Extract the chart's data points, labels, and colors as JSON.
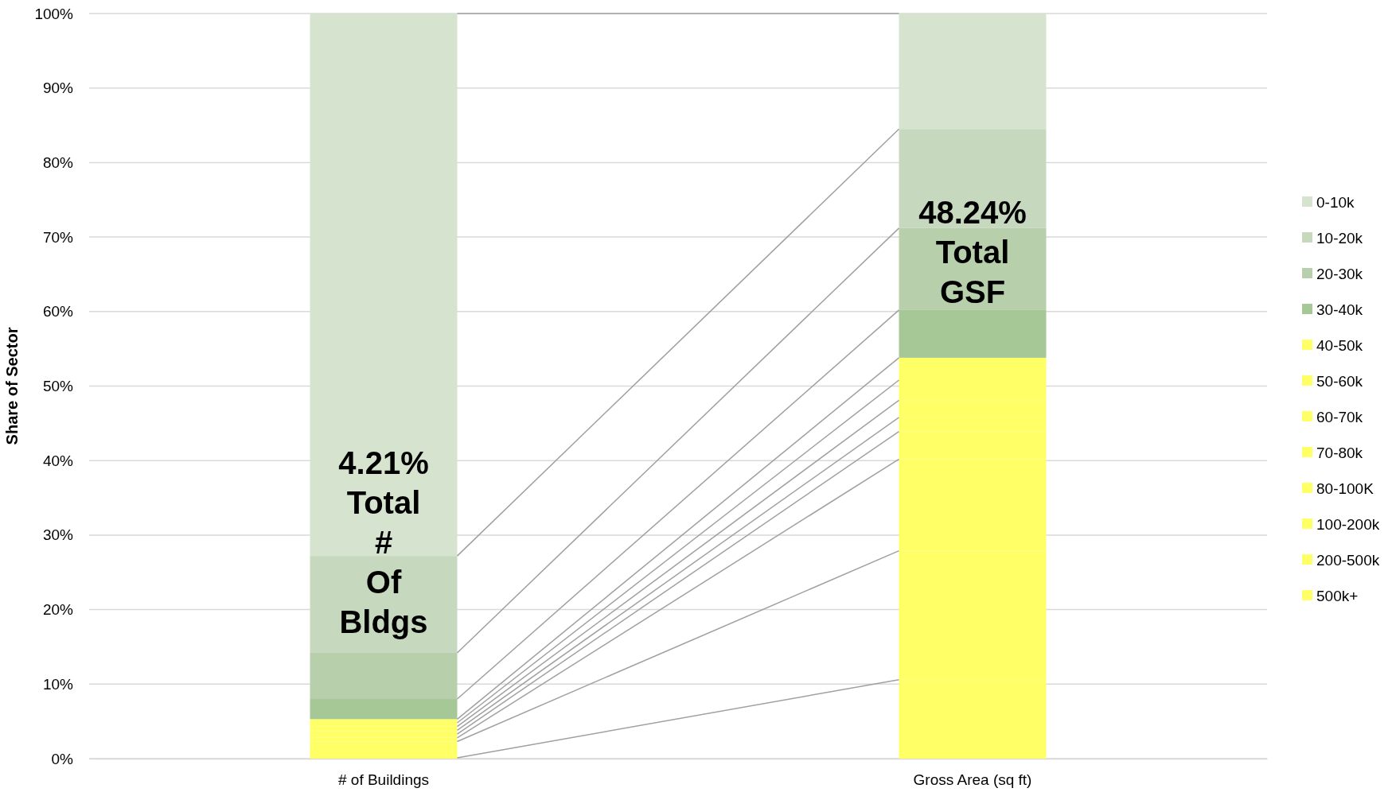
{
  "chart_data": {
    "type": "bar",
    "stacked": true,
    "ylabel": "Share of Sector",
    "categories": [
      "# of Buildings",
      "Gross Area (sq ft)"
    ],
    "ylim": [
      0,
      100
    ],
    "yticks": [
      {
        "value": 0,
        "label": "0%"
      },
      {
        "value": 10,
        "label": "10%"
      },
      {
        "value": 20,
        "label": "20%"
      },
      {
        "value": 30,
        "label": "30%"
      },
      {
        "value": 40,
        "label": "40%"
      },
      {
        "value": 50,
        "label": "50%"
      },
      {
        "value": 60,
        "label": "60%"
      },
      {
        "value": 70,
        "label": "70%"
      },
      {
        "value": 80,
        "label": "80%"
      },
      {
        "value": 90,
        "label": "90%"
      },
      {
        "value": 100,
        "label": "100%"
      }
    ],
    "grid": "y",
    "legend": "right",
    "series": [
      {
        "name": "500k+",
        "color": "#ffff66",
        "values": [
          0.1,
          10.6
        ]
      },
      {
        "name": "200-500k",
        "color": "#ffff66",
        "values": [
          2.2,
          17.3
        ]
      },
      {
        "name": "100-200k",
        "color": "#ffff66",
        "values": [
          0.5,
          12.3
        ]
      },
      {
        "name": "80-100K",
        "color": "#ffff66",
        "values": [
          0.5,
          3.7
        ]
      },
      {
        "name": "70-80k",
        "color": "#ffff66",
        "values": [
          0.5,
          1.9
        ]
      },
      {
        "name": "60-70k",
        "color": "#ffff66",
        "values": [
          0.5,
          2.3
        ]
      },
      {
        "name": "50-60k",
        "color": "#ffff66",
        "values": [
          0.5,
          2.7
        ]
      },
      {
        "name": "40-50k",
        "color": "#ffff66",
        "values": [
          0.5,
          3.0
        ]
      },
      {
        "name": "30-40k",
        "color": "#a6c896",
        "values": [
          2.7,
          6.4
        ]
      },
      {
        "name": "20-30k",
        "color": "#b7d0ab",
        "values": [
          6.2,
          11.0
        ]
      },
      {
        "name": "10-20k",
        "color": "#c6d9bf",
        "values": [
          13.0,
          13.3
        ]
      },
      {
        "name": "0-10k",
        "color": "#d6e4cf",
        "values": [
          72.8,
          15.5
        ]
      }
    ],
    "annotations": [
      "4.21% Total # Of Bldgs",
      "48.24% Total GSF"
    ]
  }
}
